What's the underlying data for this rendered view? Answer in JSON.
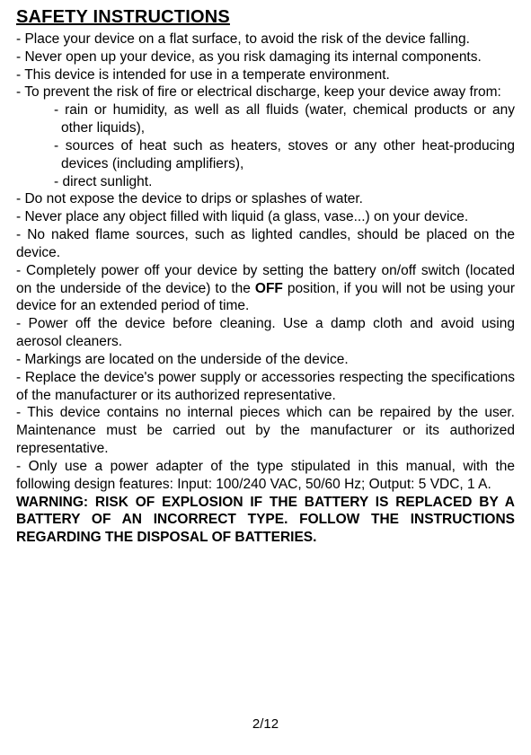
{
  "title": "SAFETY INSTRUCTIONS",
  "p1": "- Place your device on a flat surface, to avoid the risk of the device falling.",
  "p2": "- Never open up your device, as you risk damaging its internal components.",
  "p3": "- This device is intended for use in a temperate environment.",
  "p4": "- To prevent the risk of fire or electrical discharge, keep your device away from:",
  "sub1": "- rain or humidity, as well as all fluids (water, chemical products or any other liquids),",
  "sub2": "- sources of heat such as heaters, stoves or any other heat-producing devices (including amplifiers),",
  "sub3": "- direct sunlight.",
  "p5": "- Do not expose the device to drips or splashes of water.",
  "p6": "- Never place any object filled with liquid (a glass, vase...) on your device.",
  "p7": "- No naked flame sources, such as lighted candles, should be placed on the device.",
  "p8a": "- Completely power off your device by setting the battery on/off switch (located on the underside of the device) to the ",
  "p8b": "OFF",
  "p8c": " position, if you will not be using your device for an extended period of time.",
  "p9": "- Power off the device before cleaning. Use a damp cloth and avoid using aerosol cleaners.",
  "p10": "- Markings are located on the underside of the device.",
  "p11": "- Replace the device's power supply or accessories respecting the specifications of the manufacturer or its authorized representative.",
  "p12": "- This device contains no internal pieces which can be repaired by the user. Maintenance must be carried out by the manufacturer or its authorized representative.",
  "p13": "- Only use a power adapter of the type stipulated in this manual, with the following design features: Input: 100/240 VAC, 50/60 Hz; Output: 5 VDC, 1 A.",
  "warn": "WARNING: RISK OF EXPLOSION IF THE BATTERY IS REPLACED BY A BATTERY OF AN INCORRECT TYPE. FOLLOW THE INSTRUCTIONS REGARDING THE DISPOSAL OF BATTERIES.",
  "page": "2/12",
  "colors": {
    "text": "#000000",
    "background": "#ffffff"
  },
  "fonts": {
    "title_size": 20,
    "body_size": 15.5,
    "title_weight": "bold"
  }
}
